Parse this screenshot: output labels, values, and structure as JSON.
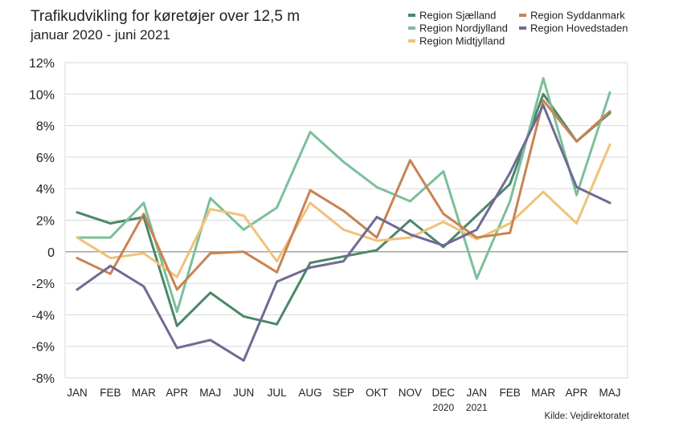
{
  "chart_data": {
    "type": "line",
    "title": "Trafikudvikling for køretøjer over 12,5 m",
    "subtitle": "januar 2020 - juni 2021",
    "source": "Kilde: Vejdirektoratet",
    "categories": [
      "JAN",
      "FEB",
      "MAR",
      "APR",
      "MAJ",
      "JUN",
      "JUL",
      "AUG",
      "SEP",
      "OKT",
      "NOV",
      "DEC",
      "JAN",
      "FEB",
      "MAR",
      "APR",
      "MAJ"
    ],
    "year_labels": [
      {
        "index": 11,
        "label": "2020"
      },
      {
        "index": 12,
        "label": "2021"
      }
    ],
    "y_ticks": [
      "-8%",
      "-6%",
      "-4%",
      "-2%",
      "0",
      "2%",
      "4%",
      "6%",
      "8%",
      "10%",
      "12%"
    ],
    "ylim": [
      -8,
      12
    ],
    "y_unit": "%",
    "series": [
      {
        "name": "Region Sjælland",
        "color": "#4a8868",
        "values": [
          2.5,
          1.8,
          2.2,
          -4.7,
          -2.6,
          -4.1,
          -4.6,
          -0.7,
          -0.3,
          0.1,
          2.0,
          0.3,
          2.3,
          4.3,
          10.0,
          7.0,
          8.8
        ]
      },
      {
        "name": "Region Nordjylland",
        "color": "#7bbf9b",
        "values": [
          0.9,
          0.9,
          3.1,
          -3.8,
          3.4,
          1.4,
          2.8,
          7.6,
          5.7,
          4.1,
          3.2,
          5.1,
          -1.7,
          3.2,
          11.0,
          3.6,
          10.1
        ]
      },
      {
        "name": "Region Midtjylland",
        "color": "#efc27a",
        "values": [
          0.9,
          -0.4,
          -0.1,
          -1.6,
          2.7,
          2.3,
          -0.6,
          3.1,
          1.4,
          0.7,
          0.9,
          1.9,
          0.8,
          1.8,
          3.8,
          1.8,
          6.8
        ]
      },
      {
        "name": "Region Syddanmark",
        "color": "#c98352",
        "values": [
          -0.4,
          -1.4,
          2.4,
          -2.4,
          -0.1,
          0.0,
          -1.3,
          3.9,
          2.6,
          0.9,
          5.8,
          2.4,
          0.9,
          1.2,
          9.6,
          7.0,
          8.9
        ]
      },
      {
        "name": "Region Hovedstaden",
        "color": "#6f6a94",
        "values": [
          -2.4,
          -0.9,
          -2.2,
          -6.1,
          -5.6,
          -6.9,
          -1.9,
          -1.0,
          -0.6,
          2.2,
          1.1,
          0.4,
          1.4,
          5.0,
          9.3,
          4.1,
          3.1
        ]
      }
    ]
  }
}
